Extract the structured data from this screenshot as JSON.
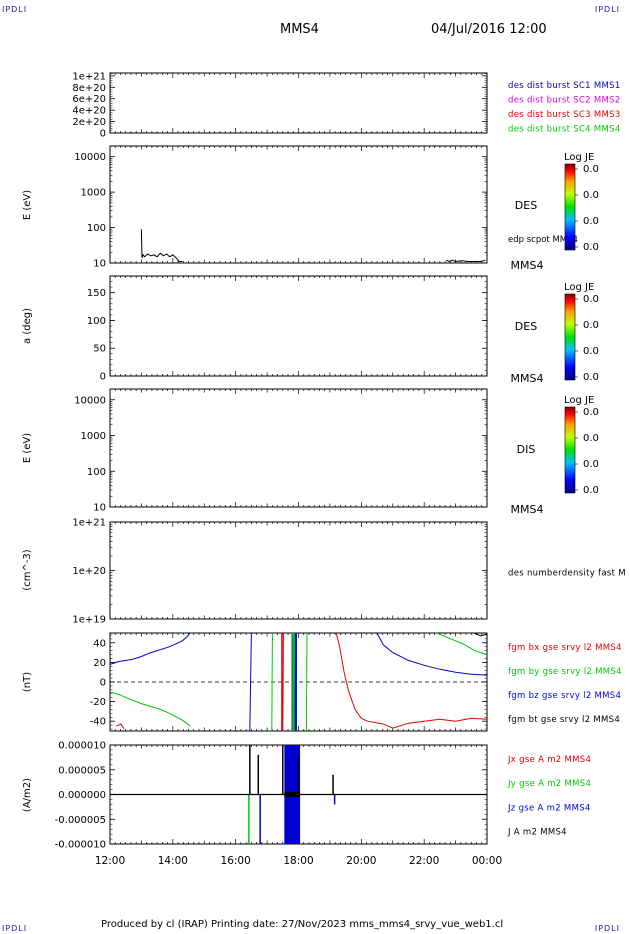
{
  "header": {
    "corner_left": "IPDLI",
    "corner_right": "IPDLI",
    "mission": "MMS4",
    "datetime": "04/Jul/2016 12:00",
    "footer_corner_left": "IPDLI",
    "footer_corner_right": "IPDLI"
  },
  "footer": {
    "text": "Produced by cl (IRAP)   Printing date: 27/Nov/2023   mms_mms4_srvy_vue_web1.cl"
  },
  "colors": {
    "red": "#e00000",
    "green": "#00c800",
    "blue": "#0000d0",
    "magenta": "#e000e0",
    "black": "#000000"
  },
  "x_axis": {
    "tick_labels": [
      "12:00",
      "14:00",
      "16:00",
      "18:00",
      "20:00",
      "22:00",
      "00:00"
    ],
    "range_hours": [
      12,
      24
    ]
  },
  "chart_data": [
    {
      "type": "line",
      "id": "panel1",
      "ylabel": "",
      "yticks": [
        "1e+21",
        "8e+20",
        "6e+20",
        "4e+20",
        "2e+20",
        "0"
      ],
      "ylim": [
        0,
        1.05e+21
      ],
      "legend": [
        {
          "label": "des dist burst SC1 MMS1",
          "color": "#0000d0"
        },
        {
          "label": "des dist burst SC2 MMS2",
          "color": "#e000e0"
        },
        {
          "label": "des dist burst SC3 MMS3",
          "color": "#e00000"
        },
        {
          "label": "des dist burst SC4 MMS4",
          "color": "#00c800"
        }
      ],
      "series": [],
      "reference_line": 0
    },
    {
      "type": "heatmap",
      "id": "panel2",
      "ylabel": "E (eV)",
      "yscale": "log",
      "yticks": [
        "10000",
        "1000",
        "100",
        "10"
      ],
      "ylim": [
        10,
        20000
      ],
      "side_label": "DES",
      "spacecraft": "MMS4",
      "overlay_label": "edp scpot MMS4",
      "colorbar": {
        "title": "Log JE",
        "ticks": [
          "0.0",
          "0.0",
          "0.0",
          "0.0"
        ]
      },
      "overlay_series": {
        "name": "edp scpot MMS4",
        "x": [
          13.0,
          13.02,
          13.05,
          13.1,
          13.2,
          13.3,
          13.4,
          13.5,
          13.6,
          13.7,
          13.8,
          13.9,
          14.0,
          14.1,
          14.2,
          14.3
        ],
        "y": [
          90,
          14,
          17,
          15,
          18,
          16,
          17,
          15,
          19,
          16,
          18,
          15,
          17,
          14,
          11,
          11
        ]
      },
      "overlay_series_2": {
        "x": [
          22.7,
          22.8,
          22.9,
          23.0,
          23.2,
          23.4,
          23.8,
          23.95
        ],
        "y": [
          12,
          11,
          12,
          11,
          11.5,
          11,
          11,
          12
        ]
      }
    },
    {
      "type": "heatmap",
      "id": "panel3",
      "ylabel": "a (deg)",
      "yticks": [
        "150",
        "100",
        "50",
        "0"
      ],
      "ylim": [
        0,
        180
      ],
      "side_label": "DES",
      "spacecraft": "MMS4",
      "colorbar": {
        "title": "Log JE",
        "ticks": [
          "0.0",
          "0.0",
          "0.0",
          "0.0"
        ]
      }
    },
    {
      "type": "heatmap",
      "id": "panel4",
      "ylabel": "E (eV)",
      "yscale": "log",
      "yticks": [
        "10000",
        "1000",
        "100",
        "10"
      ],
      "ylim": [
        10,
        20000
      ],
      "side_label": "DIS",
      "spacecraft": "MMS4",
      "colorbar": {
        "title": "Log JE",
        "ticks": [
          "0.0",
          "0.0",
          "0.0",
          "0.0"
        ]
      }
    },
    {
      "type": "line",
      "id": "panel5",
      "ylabel": "(cm^-3)",
      "yscale": "log",
      "yticks": [
        "1e+21",
        "1e+20",
        "1e+19"
      ],
      "ylim": [
        1e+19,
        1e+21
      ],
      "legend": [
        {
          "label": "des numberdensity fast M",
          "color": "#000000"
        }
      ],
      "series": []
    },
    {
      "type": "line",
      "id": "panel6",
      "ylabel": "(nT)",
      "yticks": [
        "40",
        "20",
        "0",
        "-20",
        "-40"
      ],
      "ylim": [
        -50,
        50
      ],
      "reference_line": 0,
      "legend": [
        {
          "label": "fgm bx gse srvy l2 MMS4",
          "color": "#e00000"
        },
        {
          "label": "fgm by gse srvy l2 MMS4",
          "color": "#00c800"
        },
        {
          "label": "fgm bz gse srvy l2 MMS4",
          "color": "#0000d0"
        },
        {
          "label": "fgm bt gse srvy l2 MMS4",
          "color": "#000000"
        }
      ],
      "series": [
        {
          "color": "#0000d0",
          "x": [
            12.0,
            12.3,
            12.7,
            13.0,
            13.3,
            13.6,
            13.9,
            14.1,
            14.3,
            14.45,
            14.55
          ],
          "y": [
            18,
            21,
            23,
            26,
            30,
            33,
            36,
            39,
            42,
            46,
            50
          ]
        },
        {
          "color": "#00c800",
          "x": [
            12.0,
            12.3,
            12.6,
            13.0,
            13.3,
            13.6,
            13.9,
            14.2,
            14.4,
            14.55
          ],
          "y": [
            -10,
            -13,
            -17,
            -22,
            -25,
            -28,
            -32,
            -37,
            -41,
            -45
          ]
        },
        {
          "color": "#e00000",
          "x": [
            12.2,
            12.35,
            12.45
          ],
          "y": [
            -45,
            -43,
            -48
          ]
        },
        {
          "color": "#0000d0",
          "x": [
            16.45,
            16.5
          ],
          "y": [
            -50,
            50
          ]
        },
        {
          "color": "#e00000",
          "x": [
            17.5,
            17.52
          ],
          "y": [
            -50,
            50
          ]
        },
        {
          "color": "#00c800",
          "x": [
            17.15,
            17.17
          ],
          "y": [
            -50,
            50
          ]
        },
        {
          "color": "#00c800",
          "x": [
            17.85,
            17.87
          ],
          "y": [
            -50,
            50
          ]
        },
        {
          "color": "#00c800",
          "x": [
            18.25,
            18.27
          ],
          "y": [
            -50,
            50
          ]
        },
        {
          "color": "#e00000",
          "x": [
            19.2,
            19.3,
            19.45,
            19.6,
            19.8,
            20.0,
            20.2,
            20.4,
            20.7,
            21.0,
            21.5,
            22.0,
            22.5,
            23.0,
            23.5,
            24.0
          ],
          "y": [
            50,
            38,
            10,
            -10,
            -28,
            -37,
            -40,
            -41,
            -43,
            -47,
            -42,
            -40,
            -38,
            -40,
            -37,
            -38
          ]
        },
        {
          "color": "#0000d0",
          "x": [
            20.5,
            20.7,
            21.0,
            21.5,
            22.0,
            22.5,
            23.0,
            23.5,
            24.0
          ],
          "y": [
            50,
            38,
            30,
            22,
            17,
            13,
            10,
            8,
            7
          ]
        },
        {
          "color": "#00c800",
          "x": [
            22.4,
            22.7,
            23.0,
            23.3,
            23.6,
            24.0
          ],
          "y": [
            50,
            46,
            42,
            38,
            32,
            28
          ]
        },
        {
          "color": "#000000",
          "x": [
            23.6,
            23.8,
            24.0
          ],
          "y": [
            50,
            47,
            49
          ]
        }
      ],
      "bursts": [
        {
          "color": "#0000d0",
          "x0": 17.78,
          "x1": 17.95
        },
        {
          "color": "#00c800",
          "x0": 17.8,
          "x1": 17.88
        },
        {
          "color": "#e00000",
          "x0": 17.45,
          "x1": 17.48
        }
      ]
    },
    {
      "type": "line",
      "id": "panel7",
      "ylabel": "(A/m2)",
      "yticks": [
        "0.000010",
        "0.000005",
        "0.000000",
        "-0.000005",
        "-0.000010"
      ],
      "ylim": [
        -1e-05,
        1e-05
      ],
      "legend": [
        {
          "label": "Jx gse A m2 MMS4",
          "color": "#e00000"
        },
        {
          "label": "Jy gse A m2 MMS4",
          "color": "#00c800"
        },
        {
          "label": "Jz gse A m2 MMS4",
          "color": "#0000d0"
        },
        {
          "label": "J A m2 MMS4",
          "color": "#000000"
        }
      ],
      "spikes": [
        {
          "color": "#000000",
          "x": 16.45,
          "y0": 0,
          "y1": 1e-05
        },
        {
          "color": "#00c800",
          "x": 16.42,
          "y0": 0,
          "y1": -1e-05
        },
        {
          "color": "#0000d0",
          "x": 16.78,
          "y0": 0,
          "y1": -1e-05
        },
        {
          "color": "#000000",
          "x": 16.72,
          "y0": 0,
          "y1": 8e-06
        },
        {
          "color": "#000000",
          "x": 17.5,
          "y0": 0,
          "y1": 1e-05
        },
        {
          "color": "#000000",
          "x": 18.0,
          "y0": 0,
          "y1": 8e-06
        },
        {
          "color": "#000000",
          "x": 19.1,
          "y0": 0,
          "y1": 4e-06
        },
        {
          "color": "#0000d0",
          "x": 19.15,
          "y0": 0,
          "y1": -2e-06
        }
      ],
      "bursts": [
        {
          "color": "#0000d0",
          "x0": 17.55,
          "x1": 18.05,
          "y0": -1e-05,
          "y1": 1e-05
        },
        {
          "color": "#000000",
          "x0": 17.55,
          "x1": 18.05,
          "y0": -5e-07,
          "y1": 5e-07
        }
      ]
    }
  ]
}
